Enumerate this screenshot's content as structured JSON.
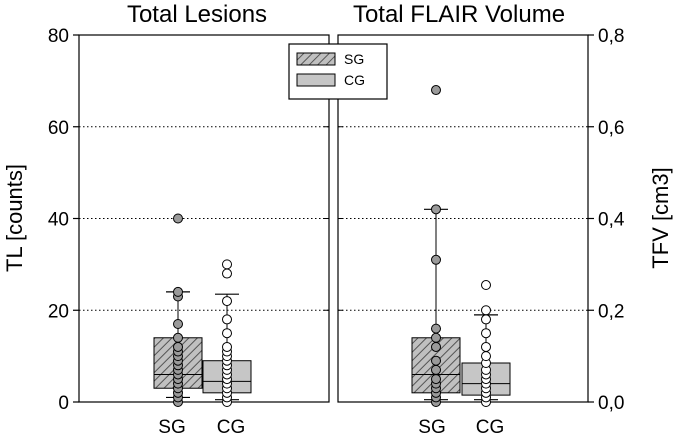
{
  "chart_data": {
    "type": "box",
    "legend": {
      "placement": "top-center",
      "entries": [
        "SG",
        "CG"
      ]
    },
    "panels": [
      {
        "title": "Total Lesions",
        "ylabel": "TL [counts]",
        "y_axis_side": "left",
        "ylim": [
          0,
          80
        ],
        "ticks": [
          0,
          20,
          40,
          60,
          80
        ],
        "tick_labels": [
          "0",
          "20",
          "40",
          "60",
          "80"
        ],
        "grid": [
          20,
          40,
          60
        ],
        "categories": [
          "SG",
          "CG"
        ],
        "series": [
          {
            "name": "SG",
            "color": "#bdbdbd",
            "hatch": true,
            "whisker_low": 1,
            "q1": 3,
            "median": 6,
            "q3": 14,
            "whisker_high": 24,
            "points": [
              0,
              1,
              2,
              3,
              4,
              5,
              6,
              7,
              8,
              9,
              10,
              11,
              12,
              14,
              17,
              23,
              24,
              40
            ]
          },
          {
            "name": "CG",
            "color": "#c6c6c6",
            "hatch": false,
            "whisker_low": 0.5,
            "q1": 2,
            "median": 4.5,
            "q3": 9,
            "whisker_high": 23.5,
            "points": [
              0,
              1,
              2,
              3,
              4,
              5,
              6,
              7,
              8,
              9,
              10,
              11,
              12,
              15,
              18,
              22,
              28,
              30
            ]
          }
        ]
      },
      {
        "title": "Total FLAIR Volume",
        "ylabel": "TFV [cm3]",
        "y_axis_side": "right",
        "ylim": [
          0,
          0.8
        ],
        "ticks": [
          0,
          0.2,
          0.4,
          0.6,
          0.8
        ],
        "tick_labels": [
          "0,0",
          "0,2",
          "0,4",
          "0,6",
          "0,8"
        ],
        "grid": [
          0.2,
          0.4,
          0.6
        ],
        "categories": [
          "SG",
          "CG"
        ],
        "series": [
          {
            "name": "SG",
            "color": "#bdbdbd",
            "hatch": true,
            "whisker_low": 0.005,
            "q1": 0.02,
            "median": 0.06,
            "q3": 0.14,
            "whisker_high": 0.42,
            "points": [
              0,
              0.01,
              0.02,
              0.03,
              0.04,
              0.05,
              0.07,
              0.09,
              0.12,
              0.14,
              0.16,
              0.31,
              0.42,
              0.68
            ]
          },
          {
            "name": "CG",
            "color": "#c6c6c6",
            "hatch": false,
            "whisker_low": 0.005,
            "q1": 0.015,
            "median": 0.04,
            "q3": 0.085,
            "whisker_high": 0.19,
            "points": [
              0,
              0.01,
              0.02,
              0.03,
              0.04,
              0.05,
              0.06,
              0.07,
              0.085,
              0.1,
              0.12,
              0.15,
              0.18,
              0.2,
              0.255
            ]
          }
        ]
      }
    ]
  }
}
